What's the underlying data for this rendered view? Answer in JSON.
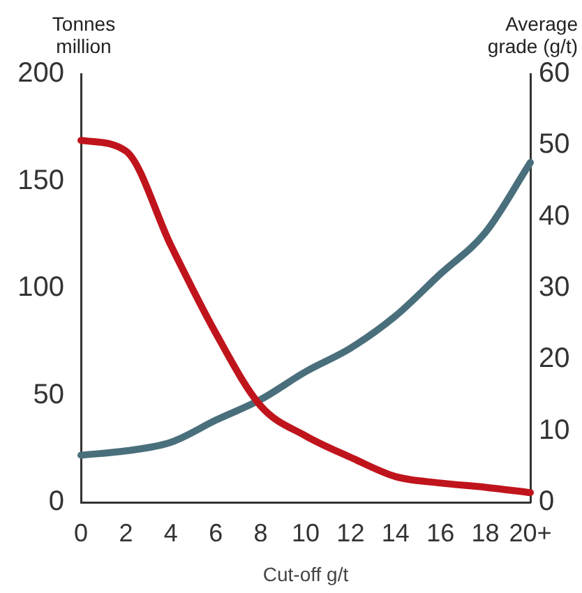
{
  "chart_data": {
    "type": "line",
    "xlabel": "Cut-off g/t",
    "ylabel": "Tonnes million",
    "y2label": "Average grade (g/t)",
    "categories": [
      "0",
      "2",
      "4",
      "6",
      "8",
      "10",
      "12",
      "14",
      "16",
      "18",
      "20+"
    ],
    "series": [
      {
        "color": "#c0141c",
        "values": [
          169,
          164,
          120,
          79,
          45,
          31,
          21,
          12,
          9,
          7,
          4.5
        ]
      },
      {
        "color": "#4a6f7c",
        "axis": "y2",
        "values": [
          6.6,
          7.2,
          8.4,
          11.5,
          14.4,
          18.3,
          21.6,
          26.1,
          32,
          37.8,
          47.6
        ]
      }
    ],
    "ylim": [
      0,
      200
    ],
    "yticks": [
      0,
      50,
      100,
      150,
      200
    ],
    "y2lim": [
      0,
      60
    ],
    "y2ticks": [
      0,
      10,
      20,
      30,
      40,
      50,
      60
    ],
    "grid": false,
    "legend": false,
    "marker": "none",
    "line_style": "solid"
  }
}
